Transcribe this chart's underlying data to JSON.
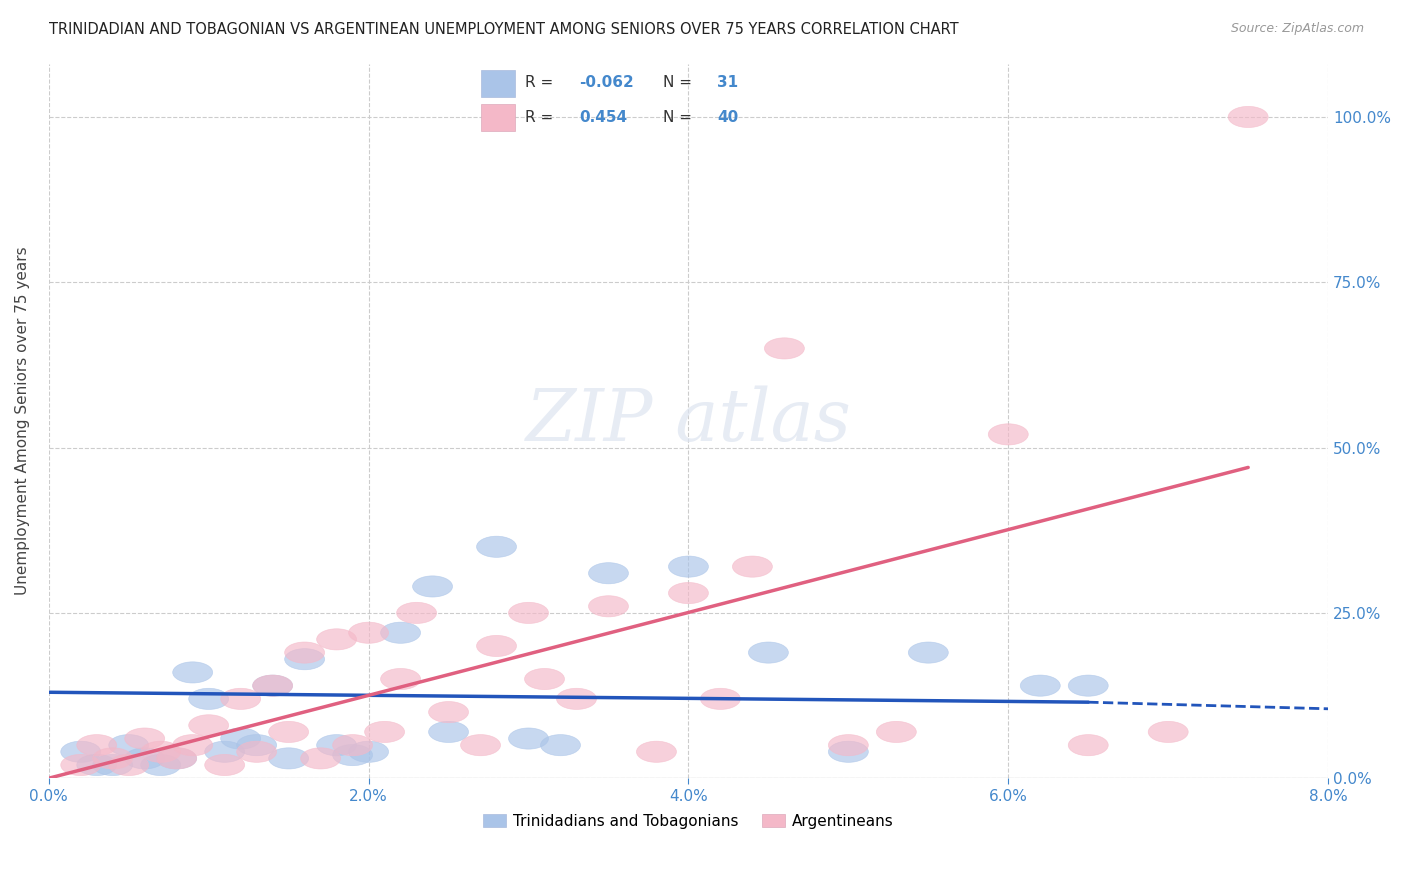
{
  "title": "TRINIDADIAN AND TOBAGONIAN VS ARGENTINEAN UNEMPLOYMENT AMONG SENIORS OVER 75 YEARS CORRELATION CHART",
  "source": "Source: ZipAtlas.com",
  "ylabel": "Unemployment Among Seniors over 75 years",
  "xlim": [
    0.0,
    0.08
  ],
  "ylim": [
    0.0,
    1.08
  ],
  "xticks": [
    0.0,
    0.02,
    0.04,
    0.06,
    0.08
  ],
  "xtick_labels": [
    "0.0%",
    "2.0%",
    "4.0%",
    "6.0%",
    "8.0%"
  ],
  "yticks": [
    0.0,
    0.25,
    0.5,
    0.75,
    1.0
  ],
  "ytick_labels": [
    "0.0%",
    "25.0%",
    "50.0%",
    "75.0%",
    "100.0%"
  ],
  "blue_R": -0.062,
  "blue_N": 31,
  "pink_R": 0.454,
  "pink_N": 40,
  "blue_color": "#aac4e8",
  "pink_color": "#f4b8c8",
  "blue_line_color": "#2255bb",
  "pink_line_color": "#e06080",
  "blue_points_x": [
    0.002,
    0.003,
    0.004,
    0.005,
    0.006,
    0.007,
    0.008,
    0.009,
    0.01,
    0.011,
    0.012,
    0.013,
    0.014,
    0.015,
    0.016,
    0.018,
    0.019,
    0.02,
    0.022,
    0.024,
    0.025,
    0.028,
    0.03,
    0.032,
    0.035,
    0.04,
    0.045,
    0.05,
    0.055,
    0.062,
    0.065
  ],
  "blue_points_y": [
    0.04,
    0.02,
    0.02,
    0.05,
    0.03,
    0.02,
    0.03,
    0.16,
    0.12,
    0.04,
    0.06,
    0.05,
    0.14,
    0.03,
    0.18,
    0.05,
    0.035,
    0.04,
    0.22,
    0.29,
    0.07,
    0.35,
    0.06,
    0.05,
    0.31,
    0.32,
    0.19,
    0.04,
    0.19,
    0.14,
    0.14
  ],
  "pink_points_x": [
    0.002,
    0.003,
    0.004,
    0.005,
    0.006,
    0.007,
    0.008,
    0.009,
    0.01,
    0.011,
    0.012,
    0.013,
    0.014,
    0.015,
    0.016,
    0.017,
    0.018,
    0.019,
    0.02,
    0.021,
    0.022,
    0.023,
    0.025,
    0.027,
    0.028,
    0.03,
    0.031,
    0.033,
    0.035,
    0.038,
    0.04,
    0.042,
    0.044,
    0.046,
    0.05,
    0.053,
    0.06,
    0.065,
    0.07,
    0.075
  ],
  "pink_points_y": [
    0.02,
    0.05,
    0.03,
    0.02,
    0.06,
    0.04,
    0.03,
    0.05,
    0.08,
    0.02,
    0.12,
    0.04,
    0.14,
    0.07,
    0.19,
    0.03,
    0.21,
    0.05,
    0.22,
    0.07,
    0.15,
    0.25,
    0.1,
    0.05,
    0.2,
    0.25,
    0.15,
    0.12,
    0.26,
    0.04,
    0.28,
    0.12,
    0.32,
    0.65,
    0.05,
    0.07,
    0.52,
    0.05,
    0.07,
    1.0
  ],
  "blue_line_x0": 0.0,
  "blue_line_x1": 0.065,
  "blue_line_x_dash0": 0.065,
  "blue_line_x_dash1": 0.08,
  "blue_line_y0": 0.13,
  "blue_line_y1": 0.115,
  "blue_line_y_dash0": 0.115,
  "blue_line_y_dash1": 0.105,
  "pink_line_x0": 0.0,
  "pink_line_x1": 0.075,
  "pink_line_y0": 0.0,
  "pink_line_y1": 0.47
}
